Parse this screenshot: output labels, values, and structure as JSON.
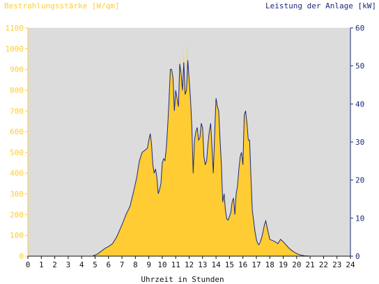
{
  "colors": {
    "background": "#ffffff",
    "plot_background": "#dcdcdc",
    "area_fill": "#ffcc33",
    "line": "#1a2a7a",
    "left_axis": "#ffcc33",
    "right_axis": "#1a2a7a",
    "x_axis": "#111111"
  },
  "chart_data": {
    "type": "area",
    "left_axis_title": "Bestrahlungsstärke [W/qm]",
    "right_axis_title": "Leistung der Anlage [kW]",
    "xlabel": "Uhrzeit in Stunden",
    "xlim": [
      0,
      24
    ],
    "ylim_left": [
      0,
      1100
    ],
    "ylim_right": [
      0,
      60
    ],
    "x_ticks": [
      "0",
      "1",
      "2",
      "3",
      "4",
      "5",
      "6",
      "7",
      "8",
      "9",
      "10",
      "11",
      "12",
      "13",
      "14",
      "15",
      "16",
      "17",
      "18",
      "19",
      "20",
      "21",
      "22",
      "23",
      "24"
    ],
    "y_ticks_left": [
      "0",
      "100",
      "200",
      "300",
      "400",
      "500",
      "600",
      "700",
      "800",
      "900",
      "1000",
      "1100"
    ],
    "y_ticks_right": [
      "0",
      "10",
      "20",
      "30",
      "40",
      "50",
      "60"
    ],
    "grid": false,
    "series": [
      {
        "name": "Bestrahlungsstärke [W/qm]",
        "axis": "left",
        "style": "area",
        "x": [
          0,
          4.8,
          5.0,
          5.2,
          5.5,
          5.8,
          6.0,
          6.3,
          6.6,
          7.0,
          7.3,
          7.6,
          7.9,
          8.1,
          8.3,
          8.5,
          8.7,
          8.9,
          9.0,
          9.1,
          9.2,
          9.3,
          9.4,
          9.5,
          9.6,
          9.7,
          9.8,
          9.9,
          10.0,
          10.1,
          10.2,
          10.3,
          10.4,
          10.5,
          10.6,
          10.7,
          10.8,
          10.9,
          11.0,
          11.1,
          11.2,
          11.3,
          11.4,
          11.5,
          11.6,
          11.7,
          11.8,
          11.85,
          11.9,
          12.0,
          12.1,
          12.2,
          12.3,
          12.4,
          12.5,
          12.6,
          12.7,
          12.8,
          12.9,
          13.0,
          13.1,
          13.2,
          13.3,
          13.4,
          13.5,
          13.6,
          13.7,
          13.8,
          13.9,
          14.0,
          14.1,
          14.2,
          14.3,
          14.4,
          14.5,
          14.6,
          14.7,
          14.8,
          14.9,
          15.0,
          15.1,
          15.2,
          15.3,
          15.4,
          15.5,
          15.6,
          15.7,
          15.8,
          15.9,
          16.0,
          16.1,
          16.2,
          16.3,
          16.4,
          16.5,
          16.6,
          16.7,
          16.8,
          16.9,
          17.0,
          17.1,
          17.2,
          17.3,
          17.4,
          17.5,
          17.6,
          17.7,
          17.8,
          17.9,
          18.0,
          18.2,
          18.4,
          18.6,
          18.8,
          19.0,
          19.2,
          19.4,
          19.6,
          19.8,
          20.0,
          20.2,
          20.4,
          20.6,
          21.0,
          24
        ],
        "values": [
          0,
          0,
          5,
          10,
          25,
          40,
          45,
          60,
          90,
          150,
          200,
          240,
          320,
          380,
          460,
          500,
          510,
          520,
          560,
          590,
          540,
          440,
          400,
          420,
          380,
          300,
          320,
          350,
          450,
          470,
          460,
          520,
          620,
          750,
          900,
          900,
          860,
          700,
          800,
          760,
          720,
          960,
          880,
          800,
          1000,
          780,
          800,
          1040,
          900,
          850,
          760,
          620,
          400,
          560,
          600,
          620,
          560,
          570,
          640,
          620,
          480,
          440,
          460,
          540,
          600,
          640,
          520,
          400,
          600,
          760,
          720,
          700,
          560,
          440,
          260,
          300,
          220,
          180,
          175,
          190,
          210,
          260,
          280,
          200,
          300,
          340,
          420,
          480,
          500,
          440,
          680,
          700,
          640,
          560,
          560,
          380,
          220,
          170,
          120,
          80,
          60,
          55,
          70,
          90,
          120,
          150,
          170,
          140,
          110,
          80,
          75,
          70,
          60,
          80,
          70,
          55,
          40,
          30,
          20,
          12,
          8,
          4,
          2,
          0,
          0
        ]
      },
      {
        "name": "Leistung der Anlage [kW]",
        "axis": "right",
        "style": "line",
        "x": [
          0,
          4.8,
          5.0,
          5.2,
          5.5,
          5.8,
          6.0,
          6.3,
          6.6,
          7.0,
          7.3,
          7.6,
          7.9,
          8.1,
          8.3,
          8.5,
          8.7,
          8.9,
          9.0,
          9.1,
          9.2,
          9.3,
          9.4,
          9.5,
          9.6,
          9.7,
          9.8,
          9.9,
          10.0,
          10.1,
          10.2,
          10.3,
          10.4,
          10.5,
          10.6,
          10.7,
          10.8,
          10.9,
          11.0,
          11.1,
          11.2,
          11.3,
          11.4,
          11.5,
          11.6,
          11.7,
          11.8,
          11.9,
          12.0,
          12.1,
          12.2,
          12.3,
          12.4,
          12.5,
          12.6,
          12.7,
          12.8,
          12.9,
          13.0,
          13.1,
          13.2,
          13.3,
          13.4,
          13.5,
          13.6,
          13.7,
          13.8,
          13.9,
          14.0,
          14.1,
          14.2,
          14.3,
          14.4,
          14.5,
          14.6,
          14.7,
          14.8,
          14.9,
          15.0,
          15.1,
          15.2,
          15.3,
          15.4,
          15.5,
          15.6,
          15.7,
          15.8,
          15.9,
          16.0,
          16.1,
          16.2,
          16.3,
          16.4,
          16.5,
          16.6,
          16.7,
          16.8,
          16.9,
          17.0,
          17.1,
          17.2,
          17.3,
          17.4,
          17.5,
          17.6,
          17.7,
          17.8,
          17.9,
          18.0,
          18.2,
          18.4,
          18.6,
          18.8,
          19.0,
          19.2,
          19.4,
          19.6,
          19.8,
          20.0,
          20.2,
          20.4,
          20.6,
          21.0,
          24
        ],
        "values": [
          0,
          0,
          0.3,
          0.6,
          1.4,
          2.2,
          2.5,
          3.3,
          5,
          8.2,
          10.9,
          13.1,
          17.5,
          20.7,
          25.1,
          27.3,
          27.8,
          28.4,
          30.5,
          32.2,
          29.5,
          24,
          21.8,
          22.9,
          20.7,
          16.4,
          17.5,
          19.1,
          24.5,
          25.6,
          25.1,
          28.4,
          33.8,
          40.9,
          49.1,
          49.1,
          46.9,
          38.2,
          43.6,
          41.5,
          39.3,
          50.5,
          48,
          43.6,
          50.9,
          42.5,
          43.6,
          51.5,
          46.4,
          41.5,
          33.8,
          21.8,
          30.5,
          32.7,
          33.8,
          30.5,
          31.1,
          34.9,
          33.8,
          26.2,
          24,
          25.1,
          29.5,
          32.7,
          34.9,
          28.4,
          21.8,
          32.7,
          41.5,
          39.3,
          38.2,
          30.5,
          24,
          14.2,
          16.4,
          12,
          9.8,
          9.5,
          10.4,
          11.5,
          14.2,
          15.3,
          10.9,
          16.4,
          18.5,
          22.9,
          26.2,
          27.3,
          24,
          37.1,
          38.2,
          34.9,
          30.5,
          30.5,
          20.7,
          12,
          9.3,
          6.5,
          4.4,
          3.3,
          3,
          3.8,
          4.9,
          6.5,
          8.2,
          9.3,
          7.6,
          6,
          4.4,
          4.1,
          3.8,
          3.3,
          4.4,
          3.8,
          3,
          2.2,
          1.6,
          1.1,
          0.7,
          0.4,
          0.2,
          0.1,
          0,
          0
        ]
      }
    ]
  }
}
